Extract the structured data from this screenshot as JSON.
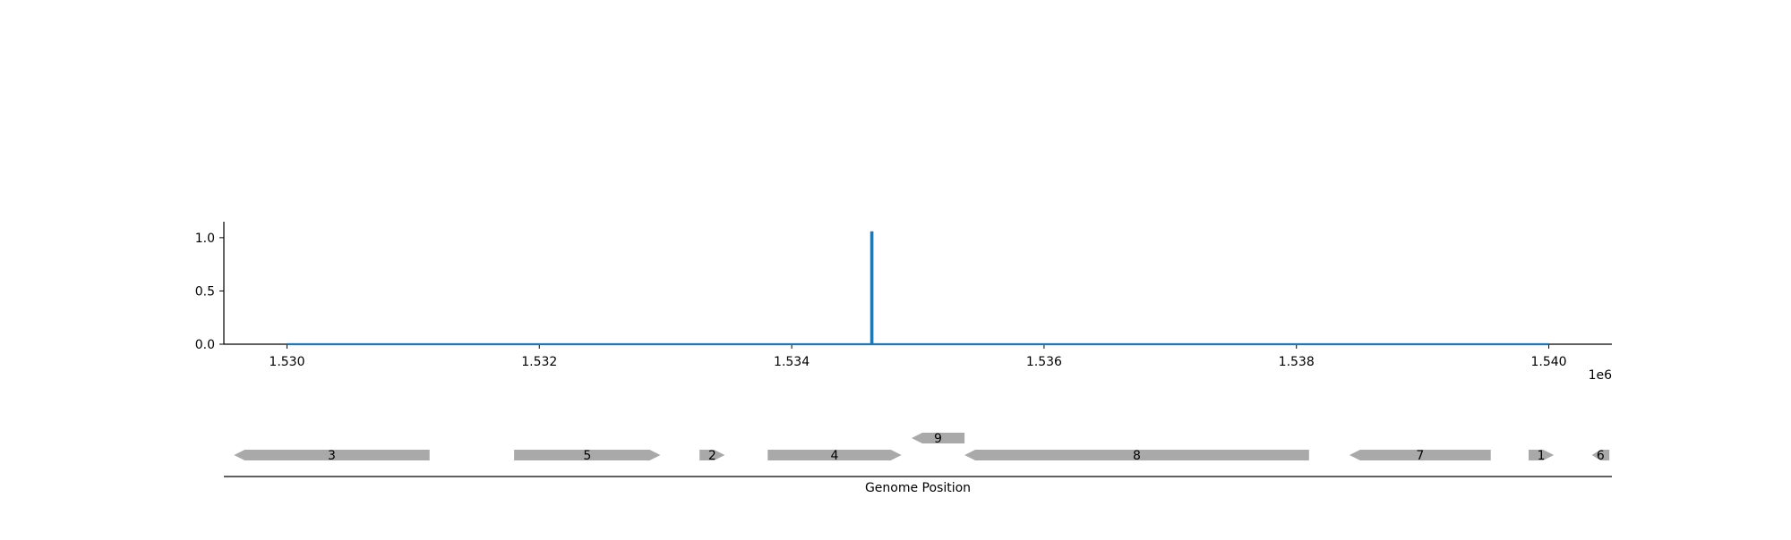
{
  "chart_data": [
    {
      "type": "line",
      "title": "",
      "xlabel": "",
      "ylabel": "",
      "xlim": [
        1529500,
        1540500
      ],
      "ylim": [
        0,
        1.15
      ],
      "x_offset_label": "1e6",
      "x_ticks": [
        {
          "value": 1530000,
          "label": "1.530"
        },
        {
          "value": 1532000,
          "label": "1.532"
        },
        {
          "value": 1534000,
          "label": "1.534"
        },
        {
          "value": 1536000,
          "label": "1.536"
        },
        {
          "value": 1538000,
          "label": "1.538"
        },
        {
          "value": 1540000,
          "label": "1.540"
        }
      ],
      "y_ticks": [
        {
          "value": 0.0,
          "label": "0.0"
        },
        {
          "value": 0.5,
          "label": "0.5"
        },
        {
          "value": 1.0,
          "label": "1.0"
        }
      ],
      "series": [
        {
          "color": "#1f77b4",
          "x": [
            1530000,
            1534630,
            1534630,
            1534640,
            1534640,
            1540000
          ],
          "y": [
            0,
            0,
            1.05,
            1.05,
            0,
            0
          ]
        }
      ],
      "grid": false
    },
    {
      "type": "gene-map",
      "xlabel": "Genome Position",
      "xlim": [
        1529500,
        1540500
      ],
      "genes": [
        {
          "label": "3",
          "start": 1529580,
          "end": 1531130,
          "strand": "-",
          "row": 0
        },
        {
          "label": "5",
          "start": 1531800,
          "end": 1532960,
          "strand": "+",
          "row": 0
        },
        {
          "label": "2",
          "start": 1533270,
          "end": 1533470,
          "strand": "+",
          "row": 0
        },
        {
          "label": "4",
          "start": 1533810,
          "end": 1534870,
          "strand": "+",
          "row": 0
        },
        {
          "label": "9",
          "start": 1534950,
          "end": 1535370,
          "strand": "-",
          "row": 1
        },
        {
          "label": "8",
          "start": 1535370,
          "end": 1538100,
          "strand": "-",
          "row": 0
        },
        {
          "label": "7",
          "start": 1538420,
          "end": 1539540,
          "strand": "-",
          "row": 0
        },
        {
          "label": "1",
          "start": 1539840,
          "end": 1540040,
          "strand": "+",
          "row": 0
        },
        {
          "label": "6",
          "start": 1540340,
          "end": 1540480,
          "strand": "-",
          "row": 0
        }
      ],
      "gene_color": "#a9a9a9"
    }
  ]
}
